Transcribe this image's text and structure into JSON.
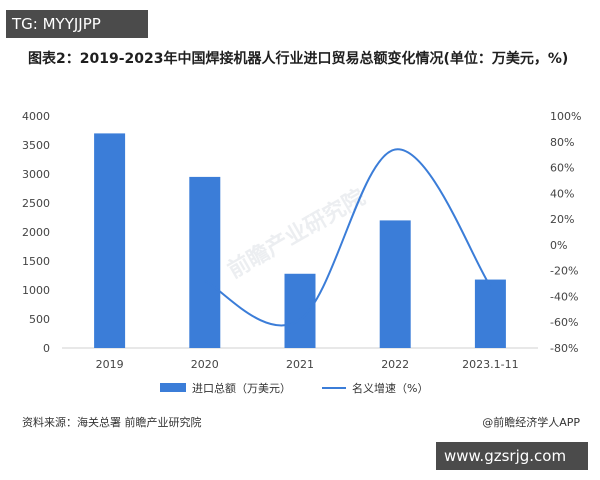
{
  "top_tag": "TG: MYYJJPP",
  "bottom_tag": "www.gzsrjg.com",
  "title": "图表2：2019-2023年中国焊接机器人行业进口贸易总额变化情况(单位：万美元，%)",
  "source_label": "资料来源：海关总署 前瞻产业研究院",
  "brand_label": "@前瞻经济学人APP",
  "watermark_text": "前瞻产业研究院",
  "colors": {
    "bar": "#3b7dd8",
    "line": "#3b7dd8",
    "axis_text": "#444444",
    "grid": "#e6e6e6"
  },
  "chart_data": {
    "type": "bar",
    "categories": [
      "2019",
      "2020",
      "2021",
      "2022",
      "2023.1-11"
    ],
    "series": [
      {
        "name": "进口总额（万美元）",
        "type": "bar",
        "axis": "left",
        "values": [
          3700,
          2950,
          1280,
          2200,
          1180
        ]
      },
      {
        "name": "名义增速（%）",
        "type": "line",
        "axis": "right",
        "values": [
          null,
          -28,
          -58,
          74,
          -32
        ]
      }
    ],
    "y_left_ticks": [
      "0",
      "500",
      "1000",
      "1500",
      "2000",
      "2500",
      "3000",
      "3500",
      "4000"
    ],
    "y_right_ticks": [
      "-80%",
      "-60%",
      "-40%",
      "-20%",
      "0%",
      "20%",
      "40%",
      "60%",
      "80%",
      "100%"
    ],
    "ylim_left": [
      0,
      4000
    ],
    "ylim_right": [
      -80,
      100
    ],
    "legend_position": "bottom",
    "grid": false
  }
}
